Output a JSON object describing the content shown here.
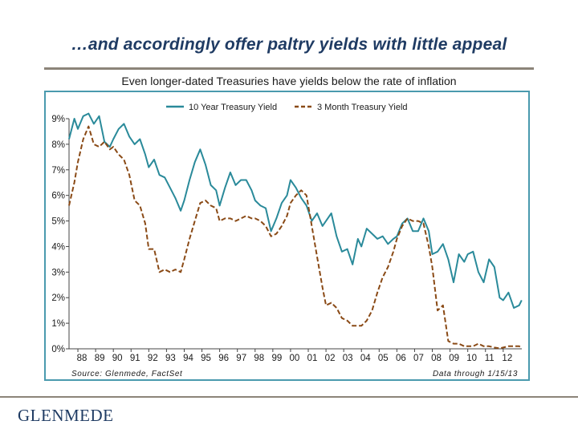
{
  "slide": {
    "title": "…and accordingly offer paltry yields with little appeal",
    "subtitle": "Even longer-dated Treasuries have yields below the rate of inflation",
    "logo_text": "GLENMEDE"
  },
  "colors": {
    "ten_year": "#2a8a9a",
    "three_month": "#8a4a16",
    "title": "#1f3b63",
    "frame": "#4a9aae"
  },
  "chart_data": {
    "type": "line",
    "title": "Even longer-dated Treasuries have yields below the rate of inflation",
    "xlabel": "",
    "ylabel": "",
    "ylim": [
      0,
      9
    ],
    "xlim": [
      1987.5,
      2013.05
    ],
    "y_ticks": [
      "0%",
      "1%",
      "2%",
      "3%",
      "4%",
      "5%",
      "6%",
      "7%",
      "8%",
      "9%"
    ],
    "y_tick_values": [
      0,
      1,
      2,
      3,
      4,
      5,
      6,
      7,
      8,
      9
    ],
    "x_ticks": [
      "88",
      "89",
      "90",
      "91",
      "92",
      "93",
      "94",
      "95",
      "96",
      "97",
      "98",
      "99",
      "00",
      "01",
      "02",
      "03",
      "04",
      "05",
      "06",
      "07",
      "08",
      "09",
      "10",
      "11",
      "12"
    ],
    "x_tick_values": [
      1988,
      1989,
      1990,
      1991,
      1992,
      1993,
      1994,
      1995,
      1996,
      1997,
      1998,
      1999,
      2000,
      2001,
      2002,
      2003,
      2004,
      2005,
      2006,
      2007,
      2008,
      2009,
      2010,
      2011,
      2012
    ],
    "legend_position": "top-center",
    "source_note": "Source: Glenmede, FactSet",
    "date_note": "Data through 1/15/13",
    "series": [
      {
        "name": "10 Year Treasury Yield",
        "style": "solid",
        "x": [
          1987.5,
          1987.8,
          1988.0,
          1988.3,
          1988.6,
          1988.9,
          1989.2,
          1989.5,
          1989.8,
          1990.0,
          1990.3,
          1990.6,
          1990.9,
          1991.2,
          1991.5,
          1991.8,
          1992.0,
          1992.3,
          1992.6,
          1992.9,
          1993.2,
          1993.5,
          1993.8,
          1994.0,
          1994.3,
          1994.6,
          1994.9,
          1995.2,
          1995.5,
          1995.8,
          1996.0,
          1996.3,
          1996.6,
          1996.9,
          1997.2,
          1997.5,
          1997.8,
          1998.0,
          1998.3,
          1998.6,
          1998.9,
          1999.2,
          1999.5,
          1999.8,
          2000.0,
          2000.3,
          2000.6,
          2000.9,
          2001.2,
          2001.5,
          2001.8,
          2002.0,
          2002.3,
          2002.6,
          2002.9,
          2003.2,
          2003.5,
          2003.8,
          2004.0,
          2004.3,
          2004.6,
          2004.9,
          2005.2,
          2005.5,
          2005.8,
          2006.0,
          2006.3,
          2006.6,
          2006.9,
          2007.2,
          2007.5,
          2007.8,
          2008.0,
          2008.3,
          2008.6,
          2008.9,
          2009.2,
          2009.5,
          2009.8,
          2010.0,
          2010.3,
          2010.6,
          2010.9,
          2011.2,
          2011.5,
          2011.8,
          2012.0,
          2012.3,
          2012.6,
          2012.9,
          2013.04
        ],
        "values": [
          8.2,
          9.0,
          8.6,
          9.1,
          9.2,
          8.8,
          9.1,
          8.1,
          7.9,
          8.2,
          8.6,
          8.8,
          8.3,
          8.0,
          8.2,
          7.6,
          7.1,
          7.4,
          6.8,
          6.7,
          6.3,
          5.9,
          5.4,
          5.8,
          6.6,
          7.3,
          7.8,
          7.2,
          6.4,
          6.2,
          5.6,
          6.3,
          6.9,
          6.4,
          6.6,
          6.6,
          6.2,
          5.8,
          5.6,
          5.5,
          4.6,
          5.1,
          5.7,
          6.0,
          6.6,
          6.3,
          5.9,
          5.6,
          5.0,
          5.3,
          4.8,
          5.0,
          5.3,
          4.4,
          3.8,
          3.9,
          3.3,
          4.3,
          4.0,
          4.7,
          4.5,
          4.3,
          4.4,
          4.1,
          4.3,
          4.4,
          4.9,
          5.1,
          4.6,
          4.6,
          5.1,
          4.6,
          3.7,
          3.8,
          4.1,
          3.5,
          2.6,
          3.7,
          3.4,
          3.7,
          3.8,
          3.0,
          2.6,
          3.5,
          3.2,
          2.0,
          1.9,
          2.2,
          1.6,
          1.7,
          1.9
        ]
      },
      {
        "name": "3 Month Treasury Yield",
        "style": "dashed",
        "x": [
          1987.5,
          1987.8,
          1988.0,
          1988.3,
          1988.6,
          1988.9,
          1989.2,
          1989.5,
          1989.8,
          1990.0,
          1990.3,
          1990.6,
          1990.9,
          1991.2,
          1991.5,
          1991.8,
          1992.0,
          1992.3,
          1992.6,
          1992.9,
          1993.2,
          1993.5,
          1993.8,
          1994.0,
          1994.3,
          1994.6,
          1994.9,
          1995.2,
          1995.5,
          1995.8,
          1996.0,
          1996.3,
          1996.6,
          1996.9,
          1997.2,
          1997.5,
          1997.8,
          1998.0,
          1998.3,
          1998.6,
          1998.9,
          1999.2,
          1999.5,
          1999.8,
          2000.0,
          2000.3,
          2000.6,
          2000.9,
          2001.2,
          2001.5,
          2001.8,
          2002.0,
          2002.3,
          2002.6,
          2002.9,
          2003.2,
          2003.5,
          2003.8,
          2004.0,
          2004.3,
          2004.6,
          2004.9,
          2005.2,
          2005.5,
          2005.8,
          2006.0,
          2006.3,
          2006.6,
          2006.9,
          2007.2,
          2007.5,
          2007.8,
          2008.0,
          2008.3,
          2008.6,
          2008.9,
          2009.2,
          2009.5,
          2009.8,
          2010.0,
          2010.3,
          2010.6,
          2010.9,
          2011.2,
          2011.5,
          2011.8,
          2012.0,
          2012.3,
          2012.6,
          2012.9,
          2013.04
        ],
        "values": [
          5.6,
          6.5,
          7.3,
          8.2,
          8.7,
          8.0,
          7.9,
          8.1,
          7.8,
          7.9,
          7.6,
          7.4,
          6.8,
          5.8,
          5.6,
          4.9,
          3.9,
          3.9,
          3.0,
          3.1,
          3.0,
          3.1,
          3.0,
          3.5,
          4.3,
          5.0,
          5.7,
          5.8,
          5.6,
          5.5,
          5.0,
          5.1,
          5.1,
          5.0,
          5.1,
          5.2,
          5.1,
          5.1,
          5.0,
          4.8,
          4.4,
          4.5,
          4.8,
          5.2,
          5.7,
          6.0,
          6.2,
          6.0,
          4.8,
          3.6,
          2.4,
          1.7,
          1.8,
          1.6,
          1.2,
          1.1,
          0.9,
          0.9,
          0.9,
          1.1,
          1.5,
          2.2,
          2.8,
          3.2,
          3.8,
          4.3,
          4.8,
          5.1,
          5.0,
          5.0,
          4.9,
          4.0,
          3.2,
          1.5,
          1.7,
          0.3,
          0.2,
          0.2,
          0.1,
          0.1,
          0.1,
          0.2,
          0.1,
          0.1,
          0.05,
          0.02,
          0.05,
          0.1,
          0.1,
          0.1,
          0.05
        ]
      }
    ]
  }
}
